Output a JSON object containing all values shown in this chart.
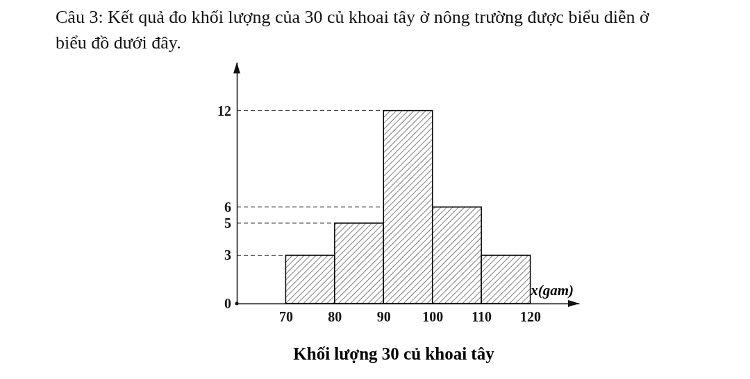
{
  "chart_data": {
    "type": "histogram",
    "title": "Câu 3: Kết quả đo khối lượng của 30  củ khoai tây ở nông trường được biểu diễn ở biểu đồ dưới đây.",
    "xlabel": "x(gam)",
    "annotations": [
      "Khối lượng 30 củ khoai tây"
    ],
    "bins": [
      70,
      80,
      90,
      100,
      110,
      120
    ],
    "values": [
      3,
      5,
      12,
      6,
      3
    ],
    "color": "#000000",
    "xlim": [
      60,
      130
    ],
    "ylim": [
      0,
      15
    ],
    "xticks": [
      70,
      80,
      90,
      100,
      110,
      120
    ],
    "yticks": [
      0,
      3,
      5,
      6,
      12
    ],
    "ref_lines": [
      {
        "axis": "y",
        "value": 12,
        "line_style": "dashed"
      },
      {
        "axis": "y",
        "value": 6,
        "line_style": "dashed"
      },
      {
        "axis": "y",
        "value": 5,
        "line_style": "dashed"
      },
      {
        "axis": "y",
        "value": 3,
        "line_style": "dashed"
      }
    ]
  }
}
